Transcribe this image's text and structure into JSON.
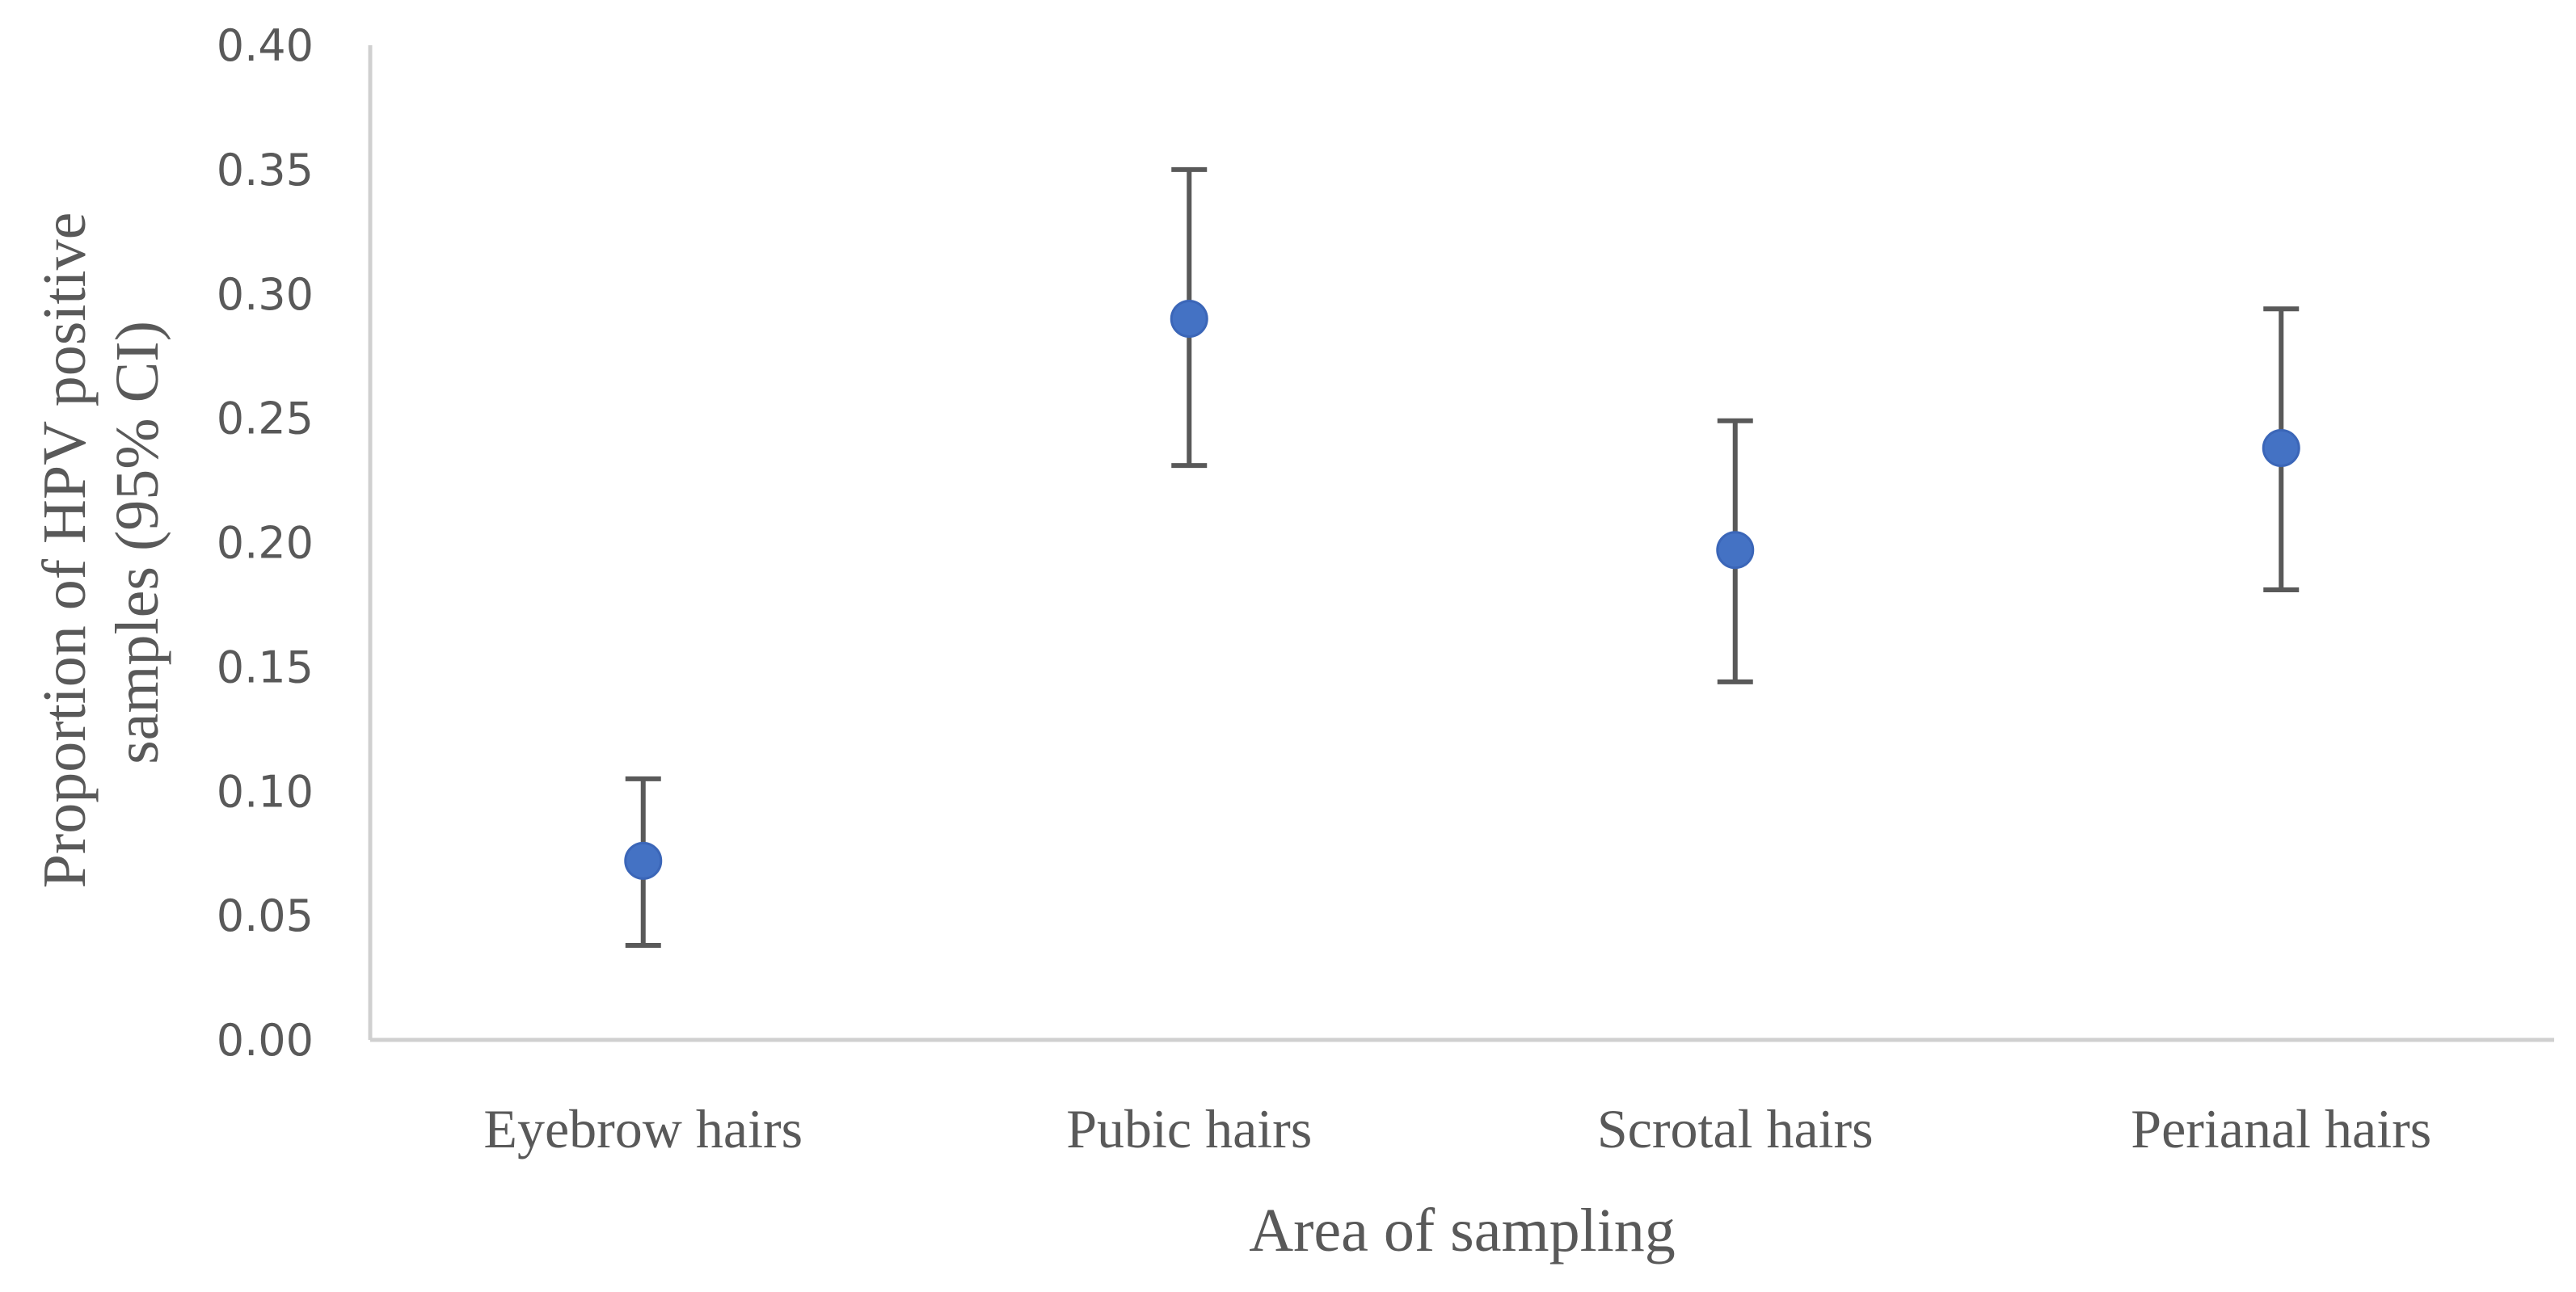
{
  "chart_data": {
    "type": "scatter",
    "title": "",
    "xlabel": "Area of sampling",
    "ylabel_lines": [
      "Proportion of HPV positive",
      "samples (95% CI)"
    ],
    "categories": [
      "Eyebrow hairs",
      "Pubic hairs",
      "Scrotal hairs",
      "Perianal hairs"
    ],
    "values": [
      0.072,
      0.29,
      0.197,
      0.238
    ],
    "ci_lower": [
      0.038,
      0.231,
      0.144,
      0.181
    ],
    "ci_upper": [
      0.105,
      0.35,
      0.249,
      0.294
    ],
    "ylim": [
      0,
      0.4
    ],
    "yticks": [
      "0.00",
      "0.05",
      "0.10",
      "0.15",
      "0.20",
      "0.25",
      "0.30",
      "0.35",
      "0.40"
    ],
    "grid": false,
    "legend": "none",
    "colors": {
      "point": "#4472c4",
      "error_bar": "#595959",
      "axis": "#d0d0d0"
    }
  }
}
